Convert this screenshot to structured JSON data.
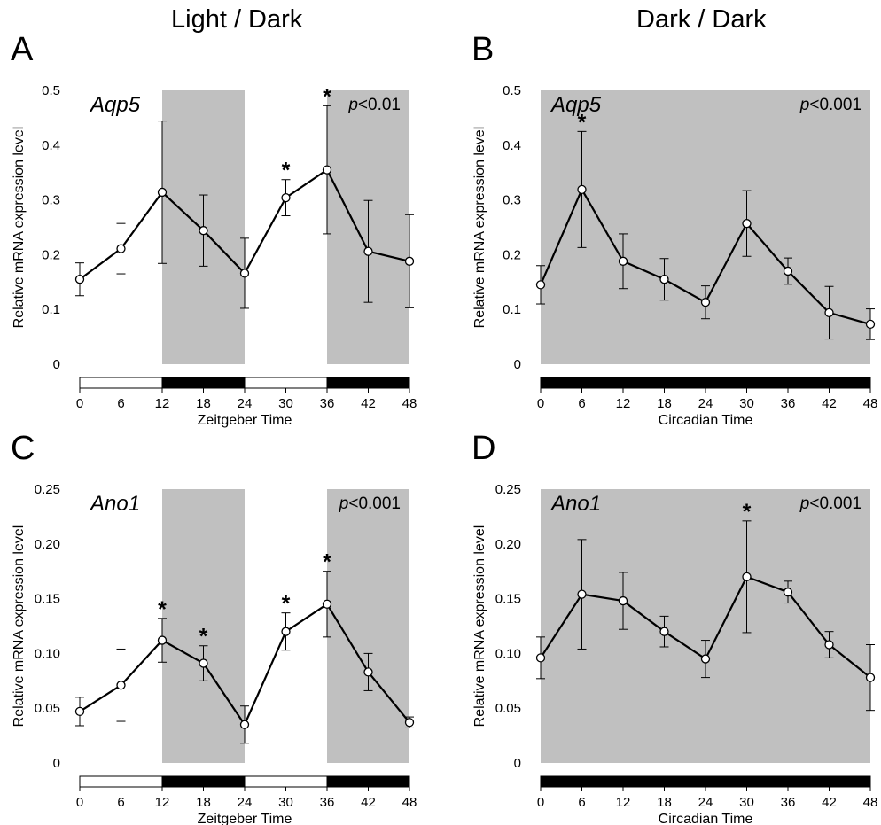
{
  "column_titles": {
    "left": "Light / Dark",
    "right": "Dark / Dark"
  },
  "colors": {
    "dark_shade": "#c0c0c0",
    "line": "#000000",
    "marker_fill": "#ffffff",
    "light_bar": "#ffffff",
    "dark_bar": "#000000"
  },
  "chart_data": [
    {
      "type": "line",
      "panel_letter": "A",
      "gene": "Aqp5",
      "p_prefix": "p",
      "p_value": "<0.01",
      "xlabel": "Zeitgeber Time",
      "ylabel": "Relative mRNA  expression level",
      "x": [
        0,
        6,
        12,
        18,
        24,
        30,
        36,
        42,
        48
      ],
      "xticks": [
        "0",
        "6",
        "12",
        "18",
        "24",
        "30",
        "36",
        "42",
        "48"
      ],
      "yticks": [
        "0",
        "0.1",
        "0.2",
        "0.3",
        "0.4",
        "0.5"
      ],
      "ylim": [
        0,
        0.5
      ],
      "xlim": [
        0,
        48
      ],
      "values": [
        0.155,
        0.211,
        0.314,
        0.244,
        0.166,
        0.304,
        0.355,
        0.206,
        0.188
      ],
      "errors": [
        0.03,
        0.046,
        0.13,
        0.065,
        0.064,
        0.033,
        0.117,
        0.093,
        0.085
      ],
      "significant": [
        false,
        false,
        false,
        false,
        false,
        true,
        true,
        false,
        false
      ],
      "star_label": "*",
      "dark_periods": [
        [
          12,
          24
        ],
        [
          36,
          48
        ]
      ],
      "light_periods": [
        [
          0,
          12
        ],
        [
          24,
          36
        ]
      ]
    },
    {
      "type": "line",
      "panel_letter": "B",
      "gene": "Aqp5",
      "p_prefix": "p",
      "p_value": "<0.001",
      "xlabel": "Circadian Time",
      "ylabel": "Relative mRNA  expression level",
      "x": [
        0,
        6,
        12,
        18,
        24,
        30,
        36,
        42,
        48
      ],
      "xticks": [
        "0",
        "6",
        "12",
        "18",
        "24",
        "30",
        "36",
        "42",
        "48"
      ],
      "yticks": [
        "0",
        "0.1",
        "0.2",
        "0.3",
        "0.4",
        "0.5"
      ],
      "ylim": [
        0,
        0.5
      ],
      "xlim": [
        0,
        48
      ],
      "values": [
        0.145,
        0.319,
        0.188,
        0.155,
        0.113,
        0.257,
        0.17,
        0.094,
        0.073
      ],
      "errors": [
        0.035,
        0.106,
        0.05,
        0.038,
        0.03,
        0.06,
        0.024,
        0.048,
        0.028
      ],
      "significant": [
        false,
        true,
        false,
        false,
        false,
        false,
        false,
        false,
        false
      ],
      "star_label": "*",
      "dark_periods": [
        [
          0,
          48
        ]
      ],
      "light_periods": []
    },
    {
      "type": "line",
      "panel_letter": "C",
      "gene": "Ano1",
      "p_prefix": "p",
      "p_value": "<0.001",
      "xlabel": "Zeitgeber Time",
      "ylabel": "Relative mRNA  expression level",
      "x": [
        0,
        6,
        12,
        18,
        24,
        30,
        36,
        42,
        48
      ],
      "xticks": [
        "0",
        "6",
        "12",
        "18",
        "24",
        "30",
        "36",
        "42",
        "48"
      ],
      "yticks": [
        "0",
        "0.05",
        "0.10",
        "0.15",
        "0.20",
        "0.25"
      ],
      "ylim": [
        0,
        0.25
      ],
      "xlim": [
        0,
        48
      ],
      "values": [
        0.047,
        0.071,
        0.112,
        0.091,
        0.035,
        0.12,
        0.145,
        0.083,
        0.037
      ],
      "errors": [
        0.013,
        0.033,
        0.02,
        0.016,
        0.017,
        0.017,
        0.03,
        0.017,
        0.005
      ],
      "significant": [
        false,
        false,
        true,
        true,
        false,
        true,
        true,
        false,
        false
      ],
      "star_label": "*",
      "dark_periods": [
        [
          12,
          24
        ],
        [
          36,
          48
        ]
      ],
      "light_periods": [
        [
          0,
          12
        ],
        [
          24,
          36
        ]
      ]
    },
    {
      "type": "line",
      "panel_letter": "D",
      "gene": "Ano1",
      "p_prefix": "p",
      "p_value": "<0.001",
      "xlabel": "Circadian Time",
      "ylabel": "Relative mRNA  expression level",
      "x": [
        0,
        6,
        12,
        18,
        24,
        30,
        36,
        42,
        48
      ],
      "xticks": [
        "0",
        "6",
        "12",
        "18",
        "24",
        "30",
        "36",
        "42",
        "48"
      ],
      "yticks": [
        "0",
        "0.05",
        "0.10",
        "0.15",
        "0.20",
        "0.25"
      ],
      "ylim": [
        0,
        0.25
      ],
      "xlim": [
        0,
        48
      ],
      "values": [
        0.096,
        0.154,
        0.148,
        0.12,
        0.095,
        0.17,
        0.156,
        0.108,
        0.078
      ],
      "errors": [
        0.019,
        0.05,
        0.026,
        0.014,
        0.017,
        0.051,
        0.01,
        0.012,
        0.03
      ],
      "significant": [
        false,
        false,
        false,
        false,
        false,
        true,
        false,
        false,
        false
      ],
      "star_label": "*",
      "dark_periods": [
        [
          0,
          48
        ]
      ],
      "light_periods": []
    }
  ]
}
